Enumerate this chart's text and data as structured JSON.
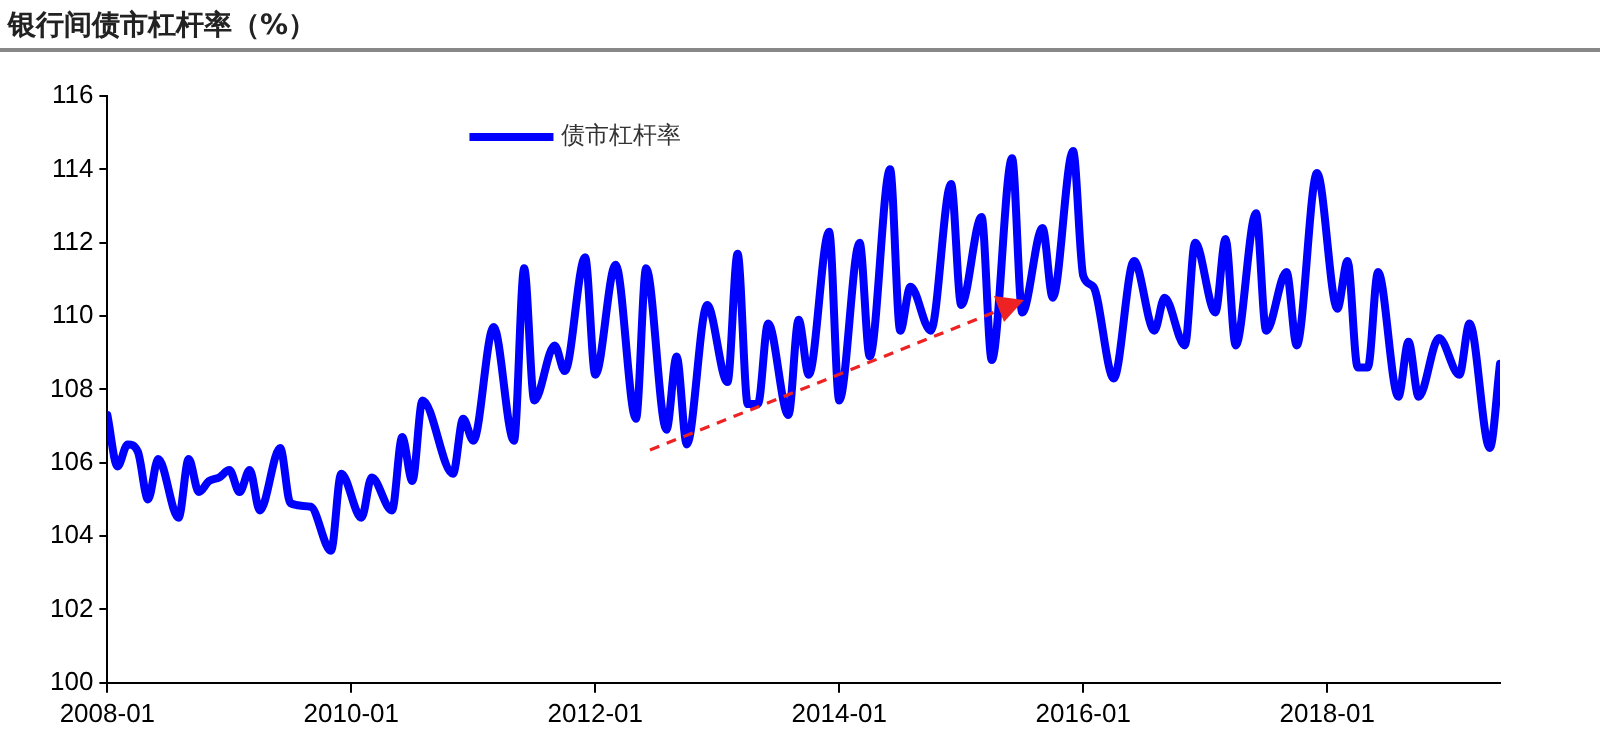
{
  "chart_data": {
    "type": "line",
    "title": "银行间债市杠杆率（%）",
    "x": [
      "2008-01",
      "2008-02",
      "2008-03",
      "2008-04",
      "2008-05",
      "2008-06",
      "2008-08",
      "2008-09",
      "2008-10",
      "2008-11",
      "2008-12",
      "2009-01",
      "2009-02",
      "2009-03",
      "2009-04",
      "2009-06",
      "2009-07",
      "2009-09",
      "2009-11",
      "2009-12",
      "2010-02",
      "2010-03",
      "2010-05",
      "2010-06",
      "2010-07",
      "2010-08",
      "2010-11",
      "2010-12",
      "2011-01",
      "2011-03",
      "2011-05",
      "2011-06",
      "2011-07",
      "2011-09",
      "2011-10",
      "2011-12",
      "2012-01",
      "2012-03",
      "2012-05",
      "2012-06",
      "2012-08",
      "2012-09",
      "2012-10",
      "2012-12",
      "2013-02",
      "2013-03",
      "2013-04",
      "2013-05",
      "2013-06",
      "2013-08",
      "2013-09",
      "2013-10",
      "2013-12",
      "2014-01",
      "2014-03",
      "2014-04",
      "2014-06",
      "2014-07",
      "2014-08",
      "2014-10",
      "2014-12",
      "2015-01",
      "2015-03",
      "2015-04",
      "2015-06",
      "2015-07",
      "2015-09",
      "2015-10",
      "2015-12",
      "2016-01",
      "2016-02",
      "2016-04",
      "2016-06",
      "2016-08",
      "2016-09",
      "2016-11",
      "2016-12",
      "2017-02",
      "2017-03",
      "2017-04",
      "2017-06",
      "2017-07",
      "2017-09",
      "2017-10",
      "2017-12",
      "2018-02",
      "2018-03",
      "2018-04",
      "2018-05",
      "2018-06",
      "2018-08",
      "2018-09",
      "2018-10",
      "2018-12",
      "2019-02",
      "2019-03",
      "2019-05",
      "2019-06"
    ],
    "series": [
      {
        "name": "债市杠杆率",
        "color": "#0000ff",
        "values": [
          107.3,
          105.9,
          106.5,
          106.3,
          105.0,
          106.1,
          104.5,
          106.1,
          105.2,
          105.5,
          105.6,
          105.8,
          105.2,
          105.8,
          104.7,
          106.4,
          104.9,
          104.8,
          103.6,
          105.7,
          104.5,
          105.6,
          104.7,
          106.7,
          105.5,
          107.7,
          105.7,
          107.2,
          106.6,
          109.7,
          106.6,
          111.3,
          107.7,
          109.2,
          108.5,
          111.6,
          108.4,
          111.4,
          107.2,
          111.3,
          106.9,
          108.9,
          106.5,
          110.3,
          108.2,
          111.7,
          107.6,
          107.6,
          109.8,
          107.3,
          109.9,
          108.4,
          112.3,
          107.7,
          112.0,
          108.9,
          114.0,
          109.6,
          110.8,
          109.6,
          113.6,
          110.3,
          112.7,
          108.8,
          114.3,
          110.1,
          112.4,
          110.5,
          114.5,
          111.1,
          110.8,
          108.3,
          111.5,
          109.6,
          110.5,
          109.2,
          112.0,
          110.1,
          112.1,
          109.2,
          112.8,
          109.6,
          111.2,
          109.2,
          113.9,
          110.2,
          111.5,
          108.6,
          108.6,
          111.2,
          107.8,
          109.3,
          107.8,
          109.4,
          108.4,
          109.8,
          106.4,
          108.7
        ]
      }
    ],
    "xlim": [
      "2008-01",
      "2019-06"
    ],
    "xticks": [
      "2008-01",
      "2010-01",
      "2012-01",
      "2014-01",
      "2016-01",
      "2018-01"
    ],
    "ylim": [
      100,
      116
    ],
    "yticks": [
      100,
      102,
      104,
      106,
      108,
      110,
      112,
      114,
      116
    ],
    "grid": false,
    "legend": "top",
    "marker": "none",
    "line_style": "solid"
  }
}
